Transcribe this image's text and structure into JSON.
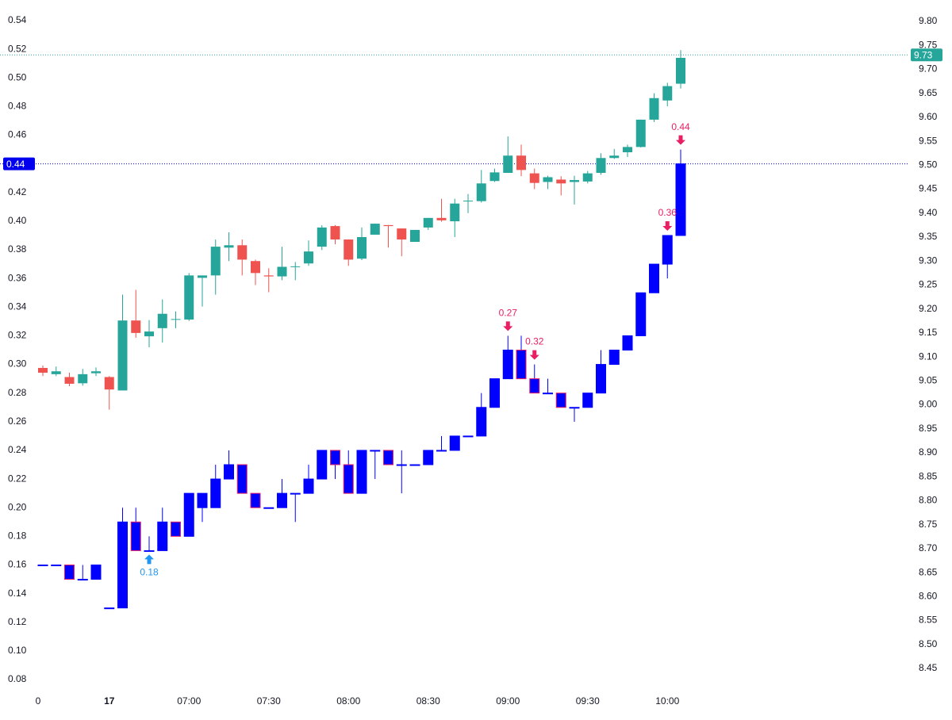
{
  "chart_data": {
    "type": "candlestick",
    "ylim": [
      0.08,
      0.54
    ],
    "yticks": [
      0.08,
      {
        "value": 0.1,
        "label": "0.10"
      },
      0.12,
      0.14,
      0.16,
      0.18,
      {
        "value": 0.2,
        "label": "0.20"
      },
      0.22,
      0.24,
      0.26,
      0.28,
      {
        "value": 0.3,
        "label": "0.30"
      },
      0.32,
      0.34,
      0.36,
      0.38,
      {
        "value": 0.4,
        "label": "0.40"
      },
      0.42,
      0.44,
      0.46,
      0.48,
      {
        "value": 0.5,
        "label": "0.50"
      },
      0.52,
      0.54
    ],
    "y2lim": [
      8.45,
      9.8
    ],
    "y2ticks": [
      8.45,
      {
        "value": 8.5,
        "label": "8.50"
      },
      8.55,
      {
        "value": 8.6,
        "label": "8.60"
      },
      8.65,
      {
        "value": 8.7,
        "label": "8.70"
      },
      8.75,
      {
        "value": 8.8,
        "label": "8.80"
      },
      8.85,
      {
        "value": 8.9,
        "label": "8.90"
      },
      8.95,
      {
        "value": 9,
        "label": "9.00"
      },
      9.05,
      {
        "value": 9.1,
        "label": "9.10"
      },
      9.15,
      {
        "value": 9.2,
        "label": "9.20"
      },
      9.25,
      {
        "value": 9.3,
        "label": "9.30"
      },
      9.35,
      {
        "value": 9.4,
        "label": "9.40"
      },
      9.45,
      {
        "value": 9.5,
        "label": "9.50"
      },
      9.55,
      {
        "value": 9.6,
        "label": "9.60"
      },
      9.65,
      {
        "value": 9.7,
        "label": "9.70"
      },
      9.75,
      {
        "value": 9.8,
        "label": "9.80"
      }
    ],
    "xticks": [
      0,
      {
        "value": 5,
        "label": "17"
      },
      {
        "value": 11,
        "label": "07:00"
      },
      {
        "value": 17,
        "label": "07:30"
      },
      {
        "value": 23,
        "label": "08:00"
      },
      {
        "value": 29,
        "label": "08:30"
      },
      {
        "value": 35,
        "label": "09:00"
      },
      {
        "value": 41,
        "label": "09:30"
      },
      {
        "value": 47,
        "label": "10:00"
      }
    ],
    "series": [
      {
        "axis": "y2",
        "up_color": "#26a69a",
        "down_color": "#ef5350",
        "body_fill": null,
        "open": [
          9.077,
          9.064,
          9.058,
          9.045,
          9.066,
          9.058,
          9.03,
          9.176,
          9.143,
          9.16,
          9.178,
          9.178,
          9.265,
          9.27,
          9.328,
          9.333,
          9.3,
          9.27,
          9.268,
          9.288,
          9.295,
          9.33,
          9.373,
          9.345,
          9.305,
          9.355,
          9.375,
          9.368,
          9.34,
          9.37,
          9.39,
          9.383,
          9.425,
          9.425,
          9.467,
          9.484,
          9.52,
          9.483,
          9.465,
          9.47,
          9.465,
          9.466,
          9.484,
          9.515,
          9.527,
          9.538,
          9.595,
          9.635,
          9.67
        ],
        "high": [
          9.082,
          9.08,
          9.067,
          9.075,
          9.078,
          9.06,
          9.23,
          9.24,
          9.177,
          9.22,
          9.195,
          9.275,
          9.27,
          9.345,
          9.36,
          9.345,
          9.303,
          9.285,
          9.33,
          9.298,
          9.343,
          9.375,
          9.375,
          9.345,
          9.37,
          9.378,
          9.375,
          9.368,
          9.365,
          9.39,
          9.43,
          9.43,
          9.44,
          9.49,
          9.493,
          9.56,
          9.543,
          9.493,
          9.478,
          9.477,
          9.478,
          9.488,
          9.525,
          9.534,
          9.543,
          9.595,
          9.65,
          9.672,
          9.74
        ],
        "low": [
          9.06,
          9.06,
          9.039,
          9.04,
          9.06,
          8.99,
          9.03,
          9.14,
          9.12,
          9.13,
          9.16,
          9.175,
          9.205,
          9.23,
          9.3,
          9.27,
          9.25,
          9.235,
          9.26,
          9.26,
          9.29,
          9.323,
          9.335,
          9.29,
          9.302,
          9.355,
          9.328,
          9.31,
          9.34,
          9.365,
          9.382,
          9.35,
          9.4,
          9.422,
          9.465,
          9.484,
          9.477,
          9.45,
          9.45,
          9.437,
          9.418,
          9.462,
          9.48,
          9.513,
          9.517,
          9.537,
          9.59,
          9.623,
          9.66
        ],
        "close": [
          9.067,
          9.07,
          9.044,
          9.064,
          9.07,
          9.032,
          9.176,
          9.15,
          9.153,
          9.19,
          9.179,
          9.27,
          9.27,
          9.33,
          9.333,
          9.303,
          9.275,
          9.268,
          9.288,
          9.289,
          9.32,
          9.37,
          9.345,
          9.303,
          9.35,
          9.378,
          9.373,
          9.345,
          9.365,
          9.39,
          9.385,
          9.42,
          9.426,
          9.462,
          9.485,
          9.52,
          9.49,
          9.463,
          9.475,
          9.462,
          9.469,
          9.483,
          9.515,
          9.52,
          9.538,
          9.595,
          9.64,
          9.665,
          9.724
        ]
      },
      {
        "axis": "y",
        "up_color": "#0000ff",
        "down_color": "#e91e63",
        "body_fill": "#0000ff",
        "open": [
          0.16,
          0.16,
          0.16,
          0.15,
          0.15,
          0.13,
          0.13,
          0.19,
          0.17,
          0.17,
          0.19,
          0.18,
          0.2,
          0.2,
          0.22,
          0.23,
          0.21,
          0.2,
          0.2,
          0.21,
          0.21,
          0.22,
          0.24,
          0.23,
          0.21,
          0.24,
          0.24,
          0.23,
          0.23,
          0.23,
          0.24,
          0.24,
          0.25,
          0.25,
          0.27,
          0.29,
          0.31,
          0.29,
          0.28,
          0.28,
          0.27,
          0.27,
          0.28,
          0.3,
          0.31,
          0.32,
          0.35,
          0.37,
          0.39
        ],
        "high": [
          0.16,
          0.16,
          0.16,
          0.16,
          0.16,
          0.13,
          0.2,
          0.2,
          0.18,
          0.2,
          0.19,
          0.21,
          0.21,
          0.23,
          0.24,
          0.23,
          0.21,
          0.2,
          0.22,
          0.21,
          0.23,
          0.24,
          0.24,
          0.24,
          0.24,
          0.24,
          0.24,
          0.24,
          0.23,
          0.24,
          0.25,
          0.25,
          0.25,
          0.28,
          0.29,
          0.32,
          0.32,
          0.3,
          0.29,
          0.28,
          0.27,
          0.28,
          0.31,
          0.31,
          0.32,
          0.35,
          0.37,
          0.39,
          0.45
        ],
        "low": [
          0.16,
          0.16,
          0.15,
          0.15,
          0.15,
          0.13,
          0.13,
          0.17,
          0.17,
          0.17,
          0.18,
          0.18,
          0.19,
          0.2,
          0.22,
          0.21,
          0.2,
          0.2,
          0.2,
          0.19,
          0.21,
          0.22,
          0.22,
          0.21,
          0.21,
          0.22,
          0.23,
          0.21,
          0.23,
          0.23,
          0.24,
          0.24,
          0.25,
          0.25,
          0.27,
          0.29,
          0.29,
          0.28,
          0.28,
          0.27,
          0.26,
          0.27,
          0.28,
          0.3,
          0.31,
          0.32,
          0.35,
          0.36,
          0.39
        ],
        "close": [
          0.16,
          0.16,
          0.15,
          0.15,
          0.16,
          0.13,
          0.19,
          0.17,
          0.17,
          0.19,
          0.18,
          0.21,
          0.21,
          0.22,
          0.23,
          0.21,
          0.2,
          0.2,
          0.21,
          0.21,
          0.22,
          0.24,
          0.23,
          0.21,
          0.24,
          0.24,
          0.23,
          0.23,
          0.23,
          0.24,
          0.24,
          0.25,
          0.25,
          0.27,
          0.29,
          0.31,
          0.29,
          0.28,
          0.28,
          0.27,
          0.27,
          0.28,
          0.3,
          0.31,
          0.32,
          0.35,
          0.37,
          0.39,
          0.44
        ]
      }
    ],
    "annotations": [
      {
        "at": 8,
        "text": "0.18",
        "dir": "up",
        "color": "#2196f3"
      },
      {
        "at": 35,
        "text": "0.27",
        "dir": "down",
        "color": "#e91e63"
      },
      {
        "at": 37,
        "text": "0.32",
        "dir": "down",
        "color": "#e91e63"
      },
      {
        "at": 47,
        "text": "0.36",
        "dir": "down",
        "color": "#e91e63"
      },
      {
        "at": 48,
        "text": "0.44",
        "dir": "down",
        "color": "#e91e63"
      }
    ],
    "price_lines": [
      {
        "value": 0.44,
        "axis": "y",
        "color": "#0000ee"
      },
      {
        "value": 9.73,
        "axis": "y2",
        "color": "#26a69a"
      }
    ]
  }
}
